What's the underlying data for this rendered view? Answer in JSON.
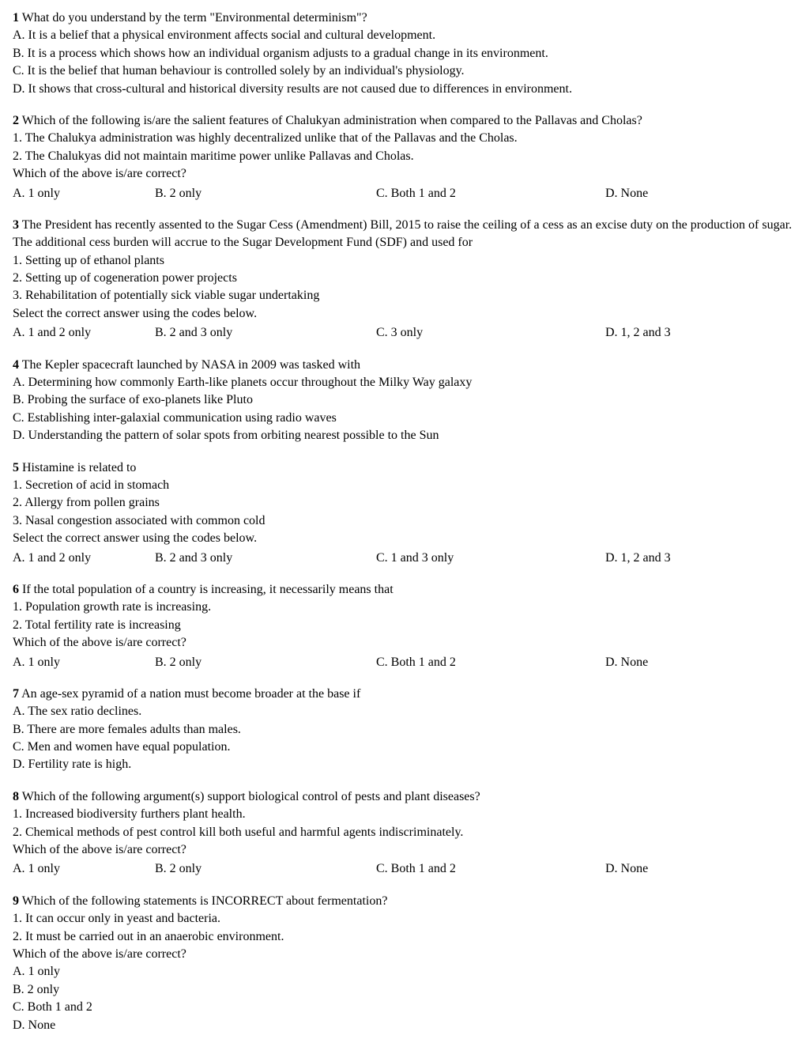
{
  "questions": [
    {
      "number": "1",
      "text": "What do you understand by the term \"Environmental determinism\"?",
      "lines": [
        "A. It is a belief that a physical environment affects social and cultural development.",
        "B. It is a process which shows how an individual organism adjusts to a gradual change in its environment.",
        "C. It is the belief that human behaviour is controlled solely by an individual's physiology.",
        "D. It shows that cross-cultural and historical diversity results are not caused due to differences in environment."
      ],
      "has_row_options": false
    },
    {
      "number": "2",
      "text": "Which of the following is/are the salient features of Chalukyan administration when compared to the Pallavas and Cholas?",
      "lines": [
        "1. The Chalukya administration was highly decentralized unlike that of the Pallavas and the Cholas.",
        "2. The Chalukyas did not maintain maritime power unlike Pallavas and Cholas.",
        "Which of the above is/are correct?"
      ],
      "has_row_options": true,
      "row_options": {
        "a": "A. 1 only",
        "b": "B. 2 only",
        "c": "C. Both 1 and 2",
        "d": "D. None"
      }
    },
    {
      "number": "3",
      "text": "The President has recently assented to the Sugar Cess (Amendment) Bill, 2015 to raise the ceiling of a cess as an excise duty on the production of sugar. The additional cess burden will accrue to the Sugar Development Fund (SDF) and used for",
      "lines": [
        "1. Setting up of ethanol plants",
        "2. Setting up of cogeneration power projects",
        "3. Rehabilitation of potentially sick viable sugar undertaking",
        "Select the correct answer using the codes below."
      ],
      "has_row_options": true,
      "row_options": {
        "a": "A. 1 and 2 only",
        "b": "B. 2 and 3 only",
        "c": "C. 3 only",
        "d": "D. 1, 2 and 3"
      }
    },
    {
      "number": "4",
      "text": "The Kepler spacecraft launched by NASA in 2009 was tasked with",
      "lines": [
        "A. Determining how commonly Earth-like planets occur throughout the Milky Way galaxy",
        "B. Probing the surface of exo-planets like Pluto",
        "C. Establishing inter-galaxial communication using radio waves",
        "D. Understanding the pattern of solar spots from orbiting nearest possible to the Sun"
      ],
      "has_row_options": false
    },
    {
      "number": "5",
      "text": "Histamine is related to",
      "lines": [
        "1. Secretion of acid in stomach",
        "2. Allergy from pollen grains",
        "3. Nasal congestion associated with common cold",
        "Select the correct answer using the codes below."
      ],
      "has_row_options": true,
      "row_options": {
        "a": "A. 1 and 2 only",
        "b": "B. 2 and 3 only",
        "c": "C. 1 and 3 only",
        "d": "D. 1, 2 and 3"
      }
    },
    {
      "number": "6",
      "text": "If the total population of a country is increasing, it necessarily means that",
      "lines": [
        "1. Population growth rate is increasing.",
        "2. Total fertility rate is increasing",
        "Which of the above is/are correct?"
      ],
      "has_row_options": true,
      "row_options": {
        "a": "A. 1 only",
        "b": "B. 2 only",
        "c": "C. Both 1 and 2",
        "d": "D. None"
      }
    },
    {
      "number": "7",
      "text": "An age-sex pyramid of a nation must become broader at the base if",
      "lines": [
        "A. The sex ratio declines.",
        "B. There are more females adults than males.",
        "C. Men and women have equal population.",
        "D. Fertility rate is high."
      ],
      "has_row_options": false
    },
    {
      "number": "8",
      "text": "Which of the following argument(s) support biological control of pests and plant diseases?",
      "lines": [
        "1. Increased biodiversity furthers plant health.",
        "2. Chemical methods of pest control kill both useful and harmful agents indiscriminately.",
        "Which of the above is/are correct?"
      ],
      "has_row_options": true,
      "row_options": {
        "a": "A. 1 only",
        "b": "B. 2 only",
        "c": "C. Both 1 and 2",
        "d": "D. None"
      }
    },
    {
      "number": "9",
      "text": "Which of the following statements is INCORRECT about fermentation?",
      "lines": [
        "1. It can occur only in yeast and bacteria.",
        "2. It must be carried out in an anaerobic environment.",
        "Which of the above is/are correct?",
        "A. 1 only",
        "B. 2 only",
        "C. Both 1 and 2",
        "D. None"
      ],
      "has_row_options": false
    }
  ]
}
